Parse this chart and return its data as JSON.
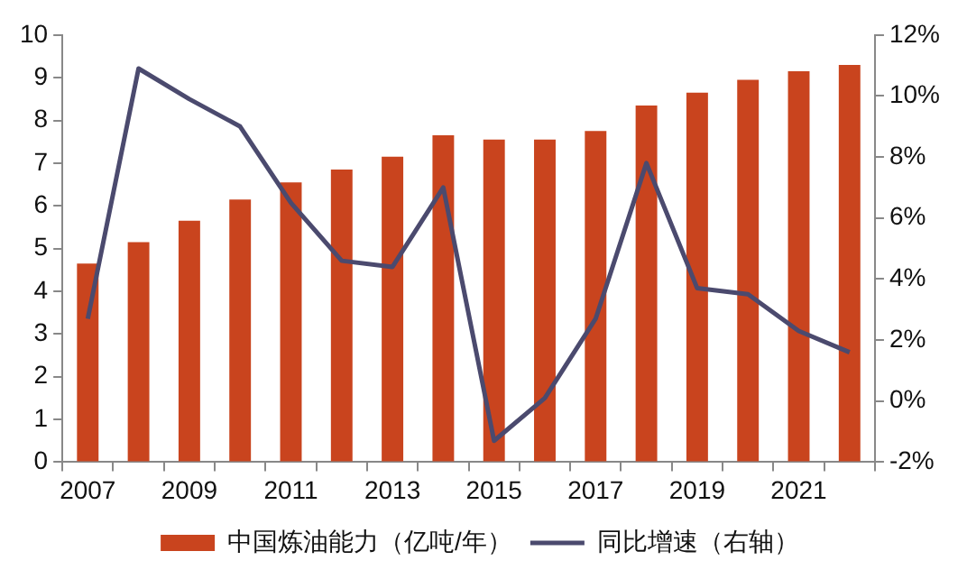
{
  "chart_data": {
    "type": "bar",
    "categories": [
      "2007",
      null,
      "2009",
      null,
      "2011",
      null,
      "2013",
      null,
      "2015",
      null,
      "2017",
      null,
      "2019",
      null,
      "2021",
      null
    ],
    "series": [
      {
        "name": "中国炼油能力（亿吨/年）",
        "color": "#c9441e",
        "values": [
          4.65,
          5.15,
          5.65,
          6.15,
          6.55,
          6.85,
          7.15,
          7.65,
          7.55,
          7.55,
          7.75,
          8.35,
          8.65,
          8.95,
          9.15,
          9.3
        ]
      },
      {
        "name": "同比增速（右轴）",
        "type": "line",
        "axis": "y2",
        "color": "#4b4a6e",
        "values": [
          2.7,
          10.9,
          9.9,
          9.0,
          6.5,
          4.6,
          4.4,
          7.0,
          -1.3,
          0.1,
          2.7,
          7.8,
          3.7,
          3.5,
          2.3,
          1.6
        ]
      }
    ],
    "ylim": [
      0,
      10
    ],
    "yticks": [
      0,
      1,
      2,
      3,
      4,
      5,
      6,
      7,
      8,
      9,
      10
    ],
    "y2lim": [
      -2,
      12
    ],
    "y2ticks": [
      {
        "value": -2,
        "label": "-2%"
      },
      {
        "value": 0,
        "label": "0%"
      },
      {
        "value": 2,
        "label": "2%"
      },
      {
        "value": 4,
        "label": "4%"
      },
      {
        "value": 6,
        "label": "6%"
      },
      {
        "value": 8,
        "label": "8%"
      },
      {
        "value": 10,
        "label": "10%"
      },
      {
        "value": 12,
        "label": "12%"
      }
    ],
    "grid": false,
    "legend": "bottom",
    "marker": "none",
    "line_style": "solid"
  }
}
